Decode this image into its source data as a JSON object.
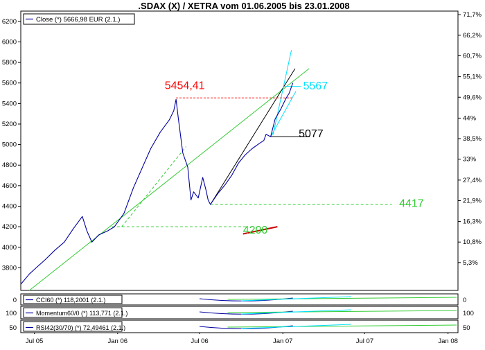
{
  "chart_data": {
    "type": "line",
    "title": ".SDAX (X) / XETRA vom 01.06.2005 bis 23.01.2008",
    "legend": "top-left",
    "grid": false,
    "x_ticks": [
      "Jul 05",
      "Jan 06",
      "Jul 06",
      "Jan 07",
      "Jul 07",
      "Jan 08"
    ],
    "x_tick_dates": [
      "2005-07-01",
      "2006-01-01",
      "2006-07-01",
      "2007-01-01",
      "2007-07-01",
      "2008-01-01"
    ],
    "x_range": [
      "2005-06-01",
      "2008-01-23"
    ],
    "y_left_ticks": [
      3800,
      4000,
      4200,
      4400,
      4600,
      4800,
      5000,
      5200,
      5400,
      5600,
      5800,
      6000,
      6200
    ],
    "y_right_ticks": [
      "71,7%",
      "66,2%",
      "60,7%",
      "55,1%",
      "49,6%",
      "44%",
      "38,5%",
      "33%",
      "27,4%",
      "21,9%",
      "16,3%",
      "10,8%",
      "5,3%"
    ],
    "y_right_values": [
      71.7,
      66.2,
      60.7,
      55.1,
      49.6,
      44.0,
      38.5,
      33.0,
      27.4,
      21.9,
      16.3,
      10.8,
      5.3
    ],
    "ylim": [
      3580,
      6300
    ],
    "series": [
      {
        "name": "Close (*) 5666,98 EUR (2.1.)",
        "color": "#0000a0",
        "points": [
          [
            "2005-06-01",
            3640
          ],
          [
            "2005-06-20",
            3740
          ],
          [
            "2005-07-05",
            3800
          ],
          [
            "2005-07-25",
            3880
          ],
          [
            "2005-08-15",
            3970
          ],
          [
            "2005-09-05",
            4050
          ],
          [
            "2005-09-25",
            4180
          ],
          [
            "2005-10-15",
            4300
          ],
          [
            "2005-10-25",
            4160
          ],
          [
            "2005-11-05",
            4050
          ],
          [
            "2005-11-20",
            4120
          ],
          [
            "2005-12-10",
            4160
          ],
          [
            "2005-12-25",
            4200
          ],
          [
            "2006-01-15",
            4330
          ],
          [
            "2006-02-05",
            4580
          ],
          [
            "2006-02-25",
            4780
          ],
          [
            "2006-03-15",
            4960
          ],
          [
            "2006-04-05",
            5120
          ],
          [
            "2006-04-25",
            5240
          ],
          [
            "2006-05-05",
            5330
          ],
          [
            "2006-05-10",
            5440
          ],
          [
            "2006-05-15",
            5260
          ],
          [
            "2006-05-25",
            4920
          ],
          [
            "2006-06-05",
            4780
          ],
          [
            "2006-06-12",
            4460
          ],
          [
            "2006-06-18",
            4540
          ],
          [
            "2006-06-28",
            4480
          ],
          [
            "2006-07-08",
            4680
          ],
          [
            "2006-07-15",
            4560
          ],
          [
            "2006-07-20",
            4460
          ],
          [
            "2006-07-25",
            4417
          ],
          [
            "2006-08-10",
            4520
          ],
          [
            "2006-08-25",
            4600
          ],
          [
            "2006-09-10",
            4700
          ],
          [
            "2006-09-25",
            4820
          ],
          [
            "2006-10-10",
            4900
          ],
          [
            "2006-10-25",
            4960
          ],
          [
            "2006-11-10",
            5010
          ],
          [
            "2006-11-20",
            5040
          ],
          [
            "2006-11-25",
            5100
          ],
          [
            "2006-12-05",
            5077
          ],
          [
            "2006-12-15",
            5250
          ],
          [
            "2006-12-28",
            5350
          ],
          [
            "2007-01-08",
            5450
          ],
          [
            "2007-01-15",
            5500
          ],
          [
            "2007-01-23",
            5600
          ]
        ]
      }
    ],
    "levels": [
      {
        "label": "5454,41",
        "value": 5454.41,
        "color": "#ff0000"
      },
      {
        "label": "5567",
        "value": 5567,
        "color": "#00e0ff"
      },
      {
        "label": "5077",
        "value": 5077,
        "color": "#000000"
      },
      {
        "label": "4417",
        "value": 4417,
        "color": "#33cc33"
      },
      {
        "label": "4200",
        "value": 4200,
        "color": "#33cc33"
      }
    ],
    "indicators": [
      {
        "name": "CCI60 (*) 118,2001 (2.1.)",
        "tick_left": "0",
        "tick_right": "0"
      },
      {
        "name": "Momentum60/0 (*) 113,771 (2.1.)",
        "tick_left": "100",
        "tick_right": "100"
      },
      {
        "name": "RSI42(30/70) (*) 72,49461 (2.1.)",
        "tick_left": "50",
        "tick_right": "50"
      }
    ]
  }
}
